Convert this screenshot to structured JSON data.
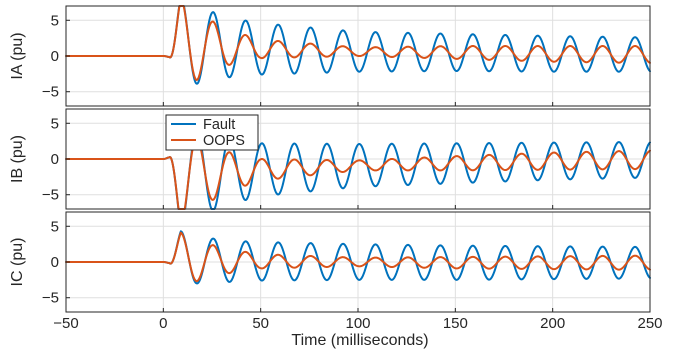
{
  "figure": {
    "xlabel": "Time (milliseconds)",
    "legend": {
      "placement": "top-left",
      "entries": [
        "Fault",
        "OOPS"
      ]
    },
    "colors": {
      "Fault": "#0072bd",
      "OOPS": "#d95319",
      "grid": "#dfdfdf",
      "axis": "#262626"
    }
  },
  "chart_data": [
    {
      "type": "line",
      "ylabel": "IA (pu)",
      "xlim": [
        -50,
        250
      ],
      "ylim": [
        -7,
        7
      ],
      "xticks": [
        -50,
        0,
        50,
        100,
        150,
        200,
        250
      ],
      "yticks": [
        -5,
        0,
        5
      ],
      "grid": true,
      "fault_onset_ms": 0,
      "series": [
        {
          "name": "Fault",
          "color": "#0072bd",
          "x": [
            -50,
            0,
            3,
            9,
            17,
            25,
            33,
            50,
            100,
            150,
            200,
            250
          ],
          "peak_envelope": [
            0,
            0,
            0.3,
            6.5,
            5.5,
            4.8,
            4.2,
            3.6,
            2.8,
            2.6,
            2.5,
            2.4
          ],
          "dc_offset": [
            0,
            0,
            0,
            1.9,
            1.6,
            1.4,
            1.2,
            1.0,
            0.6,
            0.5,
            0.3,
            0.2
          ],
          "frequency_hz": 60
        },
        {
          "name": "OOPS",
          "color": "#d95319",
          "x": [
            -50,
            0,
            3,
            9,
            17,
            25,
            33,
            50,
            100,
            150,
            200,
            250
          ],
          "peak_envelope": [
            0,
            0,
            0.3,
            6.3,
            5.0,
            3.5,
            2.5,
            1.3,
            0.6,
            0.9,
            1.1,
            1.2
          ],
          "dc_offset": [
            0,
            0,
            0,
            1.9,
            1.6,
            1.4,
            1.2,
            1.0,
            0.6,
            0.5,
            0.3,
            0.2
          ],
          "frequency_hz": 60
        }
      ]
    },
    {
      "type": "line",
      "ylabel": "IB (pu)",
      "xlim": [
        -50,
        250
      ],
      "ylim": [
        -7,
        7
      ],
      "xticks": [
        -50,
        0,
        50,
        100,
        150,
        200,
        250
      ],
      "yticks": [
        -5,
        0,
        5
      ],
      "grid": true,
      "fault_onset_ms": 0,
      "series": [
        {
          "name": "Fault",
          "color": "#0072bd",
          "x": [
            -50,
            0,
            3,
            9,
            17,
            25,
            33,
            50,
            100,
            150,
            200,
            250
          ],
          "peak_envelope": [
            0,
            0,
            0.5,
            7.1,
            6.1,
            5.3,
            4.6,
            3.7,
            3.0,
            2.8,
            2.6,
            2.5
          ],
          "dc_offset": [
            0,
            0,
            0,
            -2.4,
            -2.2,
            -2.0,
            -1.8,
            -1.5,
            -0.9,
            -0.6,
            -0.3,
            -0.1
          ],
          "frequency_hz": 60
        },
        {
          "name": "OOPS",
          "color": "#d95319",
          "x": [
            -50,
            0,
            3,
            9,
            17,
            25,
            33,
            50,
            100,
            150,
            200,
            250
          ],
          "peak_envelope": [
            0,
            0,
            0.5,
            6.9,
            5.2,
            3.8,
            2.8,
            1.5,
            0.7,
            1.0,
            1.2,
            1.3
          ],
          "dc_offset": [
            0,
            0,
            0,
            -2.4,
            -2.2,
            -2.0,
            -1.8,
            -1.5,
            -0.9,
            -0.6,
            -0.3,
            -0.1
          ],
          "frequency_hz": 60
        }
      ]
    },
    {
      "type": "line",
      "ylabel": "IC (pu)",
      "xlim": [
        -50,
        250
      ],
      "ylim": [
        -7,
        7
      ],
      "xticks": [
        -50,
        0,
        50,
        100,
        150,
        200,
        250
      ],
      "yticks": [
        -5,
        0,
        5
      ],
      "grid": true,
      "fault_onset_ms": 0,
      "series": [
        {
          "name": "Fault",
          "color": "#0072bd",
          "x": [
            -50,
            0,
            3,
            9,
            17,
            25,
            33,
            50,
            100,
            150,
            200,
            250
          ],
          "peak_envelope": [
            0,
            0,
            0.3,
            3.9,
            3.3,
            3.1,
            2.9,
            2.7,
            2.5,
            2.4,
            2.3,
            2.2
          ],
          "dc_offset": [
            0,
            0,
            0,
            0.4,
            0.3,
            0.2,
            0.1,
            0.1,
            0,
            -0.1,
            -0.1,
            -0.1
          ],
          "frequency_hz": 60
        },
        {
          "name": "OOPS",
          "color": "#d95319",
          "x": [
            -50,
            0,
            3,
            9,
            17,
            25,
            33,
            50,
            100,
            150,
            200,
            250
          ],
          "peak_envelope": [
            0,
            0,
            0.3,
            3.7,
            3.0,
            2.2,
            1.7,
            1.0,
            0.6,
            0.8,
            0.9,
            1.0
          ],
          "dc_offset": [
            0,
            0,
            0,
            0.4,
            0.3,
            0.2,
            0.1,
            0.1,
            0,
            -0.1,
            -0.1,
            -0.1
          ],
          "frequency_hz": 60
        }
      ]
    }
  ]
}
